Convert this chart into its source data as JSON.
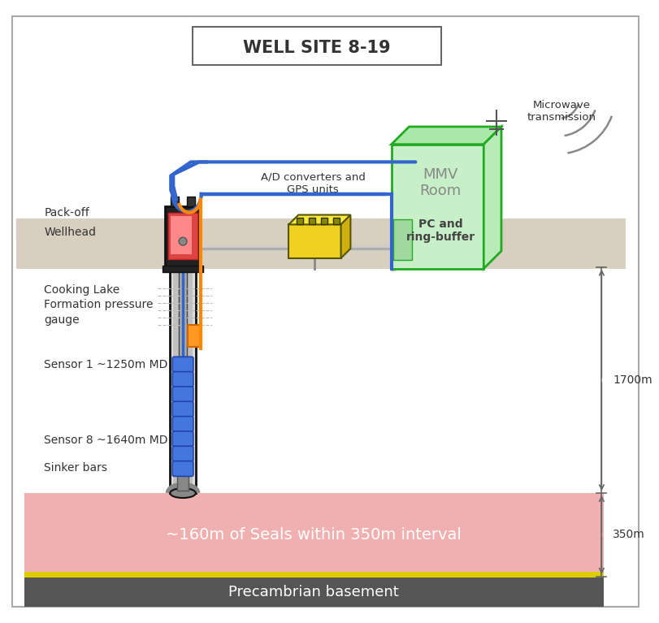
{
  "title": "WELL SITE 8-19",
  "bg": "#ffffff",
  "border_color": "#aaaaaa",
  "ground_color": "#d8cfc0",
  "seal_color": "#f0b0b0",
  "seal_text": "~160m of Seals within 350m interval",
  "basement_color": "#555555",
  "basement_text": "Precambrian basement",
  "label_packoff": "Pack-off",
  "label_wellhead": "Wellhead",
  "label_cooking_lake": "Cooking Lake\nFormation pressure\ngauge",
  "label_sensor1": "Sensor 1 ~1250m MD",
  "label_sensor8": "Sensor 8 ~1640m MD",
  "label_sinker": "Sinker bars",
  "label_ad": "A/D converters and\nGPS units",
  "label_microwave": "Microwave\ntransmission",
  "label_1700m": "1700m",
  "label_350m": "350m",
  "text_color": "#333333",
  "green_face": "#c8f0c8",
  "green_top": "#a8e8a8",
  "green_right": "#b0e8b0",
  "green_edge": "#22aa22",
  "yellow_face": "#f0d020",
  "yellow_top": "#f8e840",
  "yellow_edge": "#888820",
  "blue": "#3366cc",
  "orange": "#ff8800",
  "gold": "#ddcc00",
  "gray": "#888888",
  "dark_gray": "#444444"
}
